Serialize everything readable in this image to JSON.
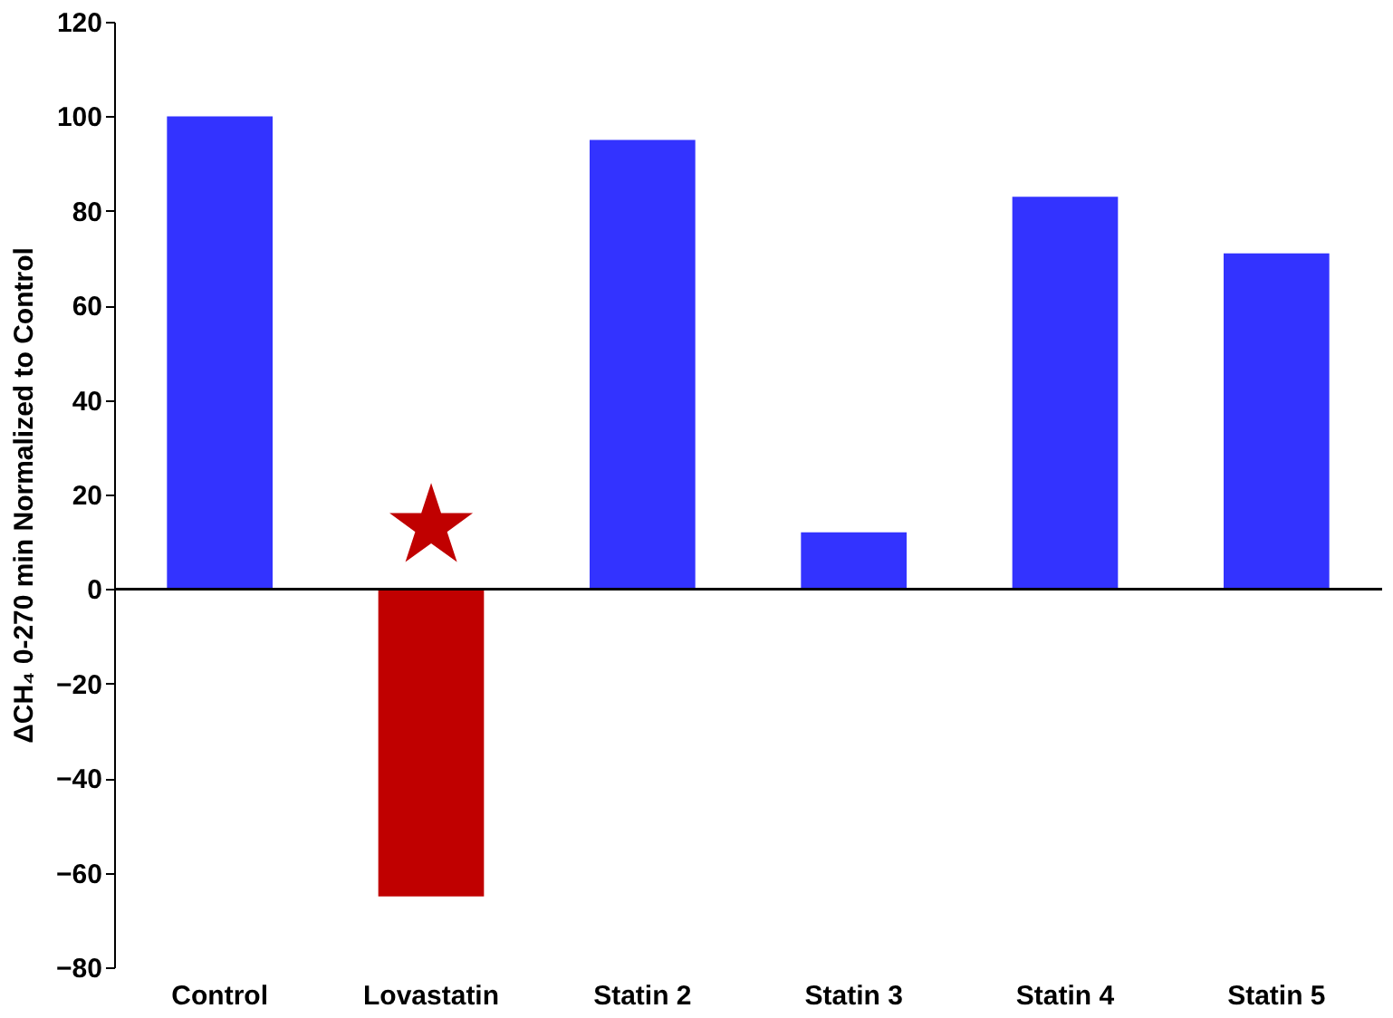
{
  "chart_data": {
    "type": "bar",
    "ylabel": "ΔCH₄ 0-270 min Normalized to Control",
    "categories": [
      "Control",
      "Lovastatin",
      "Statin 2",
      "Statin 3",
      "Statin 4",
      "Statin 5"
    ],
    "values": [
      100,
      -65,
      95,
      12,
      83,
      71
    ],
    "colors": [
      "#3333ff",
      "#c00000",
      "#3333ff",
      "#3333ff",
      "#3333ff",
      "#3333ff"
    ],
    "ylim": [
      -80,
      120
    ],
    "yticks": [
      -80,
      -60,
      -40,
      -20,
      0,
      20,
      40,
      60,
      80,
      100,
      120
    ],
    "grid": false,
    "ref_lines": [
      {
        "axis": "y",
        "value": 0,
        "color": "#000000"
      }
    ],
    "annotations": [
      "★"
    ]
  }
}
